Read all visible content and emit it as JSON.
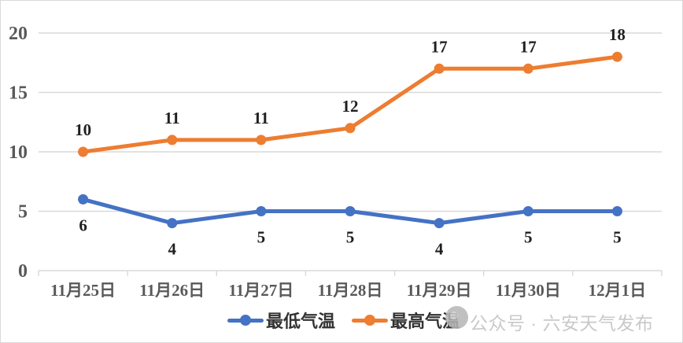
{
  "chart_data": {
    "type": "line",
    "title": "",
    "xlabel": "",
    "ylabel": "",
    "categories": [
      "11月25日",
      "11月26日",
      "11月27日",
      "11月28日",
      "11月29日",
      "11月30日",
      "12月1日"
    ],
    "series": [
      {
        "name": "最低气温",
        "slug": "min-temp",
        "color": "#4472C4",
        "values": [
          6,
          4,
          5,
          5,
          4,
          5,
          5
        ],
        "label_position": "below"
      },
      {
        "name": "最高气温",
        "slug": "max-temp",
        "color": "#ED7D31",
        "values": [
          10,
          11,
          11,
          12,
          17,
          17,
          18
        ],
        "label_position": "above"
      }
    ],
    "ylim": [
      0,
      20
    ],
    "yticks": [
      0,
      5,
      10,
      15,
      20
    ],
    "grid": true,
    "legend_position": "bottom",
    "data_labels": true
  },
  "watermark": {
    "text": "公众号 · 六安天气发布",
    "logo": "gray-circle-logo"
  },
  "colors": {
    "background": "#FFFFFF",
    "border": "#D9D9D9",
    "grid": "#D9D9D9",
    "axis_label": "#595959",
    "data_label": "#1F1F1F",
    "legend_label": "#333333",
    "watermark_text": "#C9C9C9",
    "watermark_logo": "#B5B5B5"
  }
}
